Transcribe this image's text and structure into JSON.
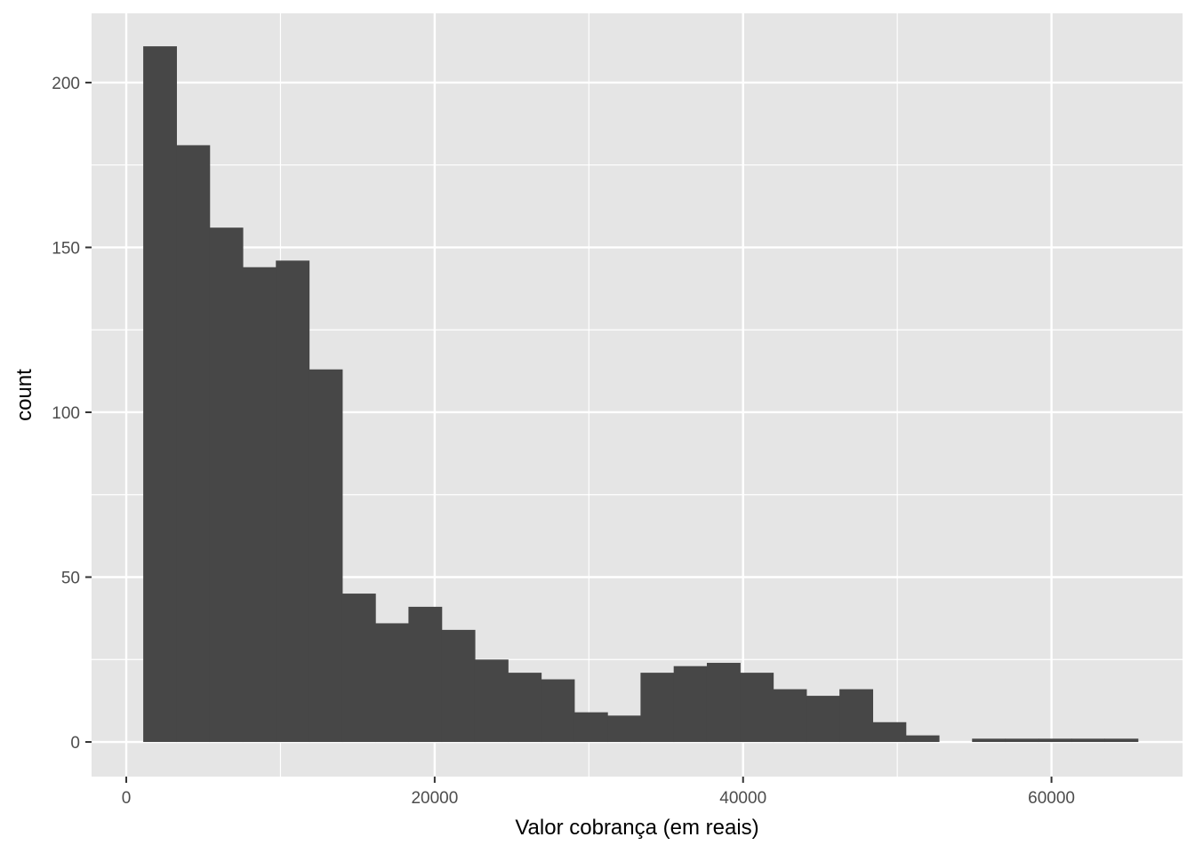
{
  "chart_data": {
    "type": "bar",
    "subtype": "histogram",
    "title": "",
    "xlabel": "Valor cobrança (em reais)",
    "ylabel": "count",
    "xlim": [
      -2250,
      68500
    ],
    "ylim": [
      -10.5,
      221
    ],
    "x_ticks": [
      0,
      20000,
      40000,
      60000
    ],
    "x_tick_labels": [
      "0",
      "20000",
      "40000",
      "60000"
    ],
    "y_ticks": [
      0,
      50,
      100,
      150,
      200
    ],
    "y_tick_labels": [
      "0",
      "50",
      "100",
      "150",
      "200"
    ],
    "x_minor_ticks": [
      10000,
      30000,
      50000
    ],
    "y_minor_ticks": [
      25,
      75,
      125,
      175
    ],
    "grid": true,
    "legend": "none",
    "colors": {
      "panel": "#e5e5e5",
      "grid": "#ffffff",
      "bar": "#474747",
      "tick": "#333333"
    },
    "bins": [
      {
        "x0": 1100,
        "x1": 3250,
        "count": 211
      },
      {
        "x0": 3250,
        "x1": 5400,
        "count": 181
      },
      {
        "x0": 5400,
        "x1": 7550,
        "count": 156
      },
      {
        "x0": 7550,
        "x1": 9700,
        "count": 144
      },
      {
        "x0": 9700,
        "x1": 11850,
        "count": 146
      },
      {
        "x0": 11850,
        "x1": 14000,
        "count": 113
      },
      {
        "x0": 14000,
        "x1": 16150,
        "count": 45
      },
      {
        "x0": 16150,
        "x1": 18300,
        "count": 36
      },
      {
        "x0": 18300,
        "x1": 20450,
        "count": 41
      },
      {
        "x0": 20450,
        "x1": 22600,
        "count": 34
      },
      {
        "x0": 22600,
        "x1": 24750,
        "count": 25
      },
      {
        "x0": 24750,
        "x1": 26900,
        "count": 21
      },
      {
        "x0": 26900,
        "x1": 29050,
        "count": 19
      },
      {
        "x0": 29050,
        "x1": 31200,
        "count": 9
      },
      {
        "x0": 31200,
        "x1": 33350,
        "count": 8
      },
      {
        "x0": 33350,
        "x1": 35500,
        "count": 21
      },
      {
        "x0": 35500,
        "x1": 37650,
        "count": 23
      },
      {
        "x0": 37650,
        "x1": 39800,
        "count": 24
      },
      {
        "x0": 39800,
        "x1": 41950,
        "count": 21
      },
      {
        "x0": 41950,
        "x1": 44100,
        "count": 16
      },
      {
        "x0": 44100,
        "x1": 46250,
        "count": 14
      },
      {
        "x0": 46250,
        "x1": 48400,
        "count": 16
      },
      {
        "x0": 48400,
        "x1": 50550,
        "count": 6
      },
      {
        "x0": 50550,
        "x1": 52700,
        "count": 2
      },
      {
        "x0": 52700,
        "x1": 54850,
        "count": 0
      },
      {
        "x0": 54850,
        "x1": 57000,
        "count": 1
      },
      {
        "x0": 57000,
        "x1": 59150,
        "count": 1
      },
      {
        "x0": 59150,
        "x1": 61300,
        "count": 1
      },
      {
        "x0": 61300,
        "x1": 63450,
        "count": 1
      },
      {
        "x0": 63450,
        "x1": 65600,
        "count": 1
      }
    ]
  }
}
